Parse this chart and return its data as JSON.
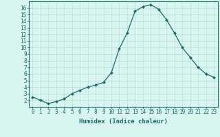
{
  "x": [
    0,
    1,
    2,
    3,
    4,
    5,
    6,
    7,
    8,
    9,
    10,
    11,
    12,
    13,
    14,
    15,
    16,
    17,
    18,
    19,
    20,
    21,
    22,
    23
  ],
  "y": [
    2.5,
    2.0,
    1.5,
    1.8,
    2.2,
    3.0,
    3.5,
    4.0,
    4.3,
    4.7,
    6.2,
    9.8,
    12.2,
    15.5,
    16.2,
    16.5,
    15.8,
    14.2,
    12.2,
    10.0,
    8.5,
    7.0,
    6.0,
    5.5
  ],
  "line_color": "#1a6b6b",
  "marker": "D",
  "marker_size": 2.0,
  "bg_color": "#d8f5f0",
  "grid_color": "#b8ddd8",
  "axis_color": "#1a6b6b",
  "xlabel": "Humidex (Indice chaleur)",
  "xlim": [
    -0.5,
    23.5
  ],
  "ylim": [
    1.0,
    17.0
  ],
  "yticks": [
    2,
    3,
    4,
    5,
    6,
    7,
    8,
    9,
    10,
    11,
    12,
    13,
    14,
    15,
    16
  ],
  "xticks": [
    0,
    1,
    2,
    3,
    4,
    5,
    6,
    7,
    8,
    9,
    10,
    11,
    12,
    13,
    14,
    15,
    16,
    17,
    18,
    19,
    20,
    21,
    22,
    23
  ],
  "label_fontsize": 5.5,
  "xlabel_fontsize": 6.5
}
